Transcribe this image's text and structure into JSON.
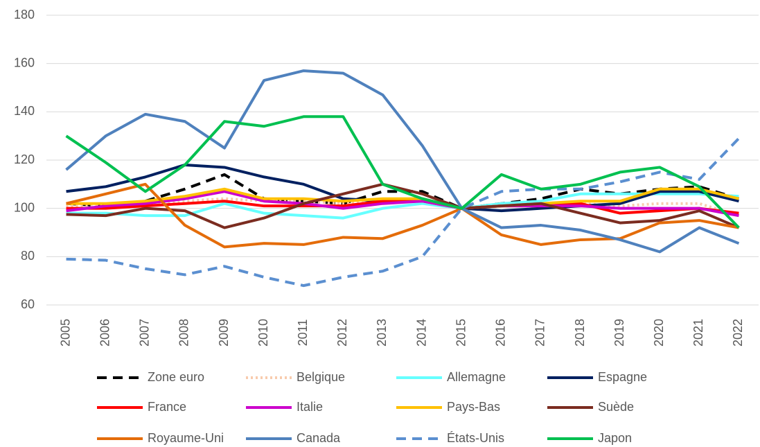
{
  "chart_data": {
    "type": "line",
    "categories": [
      "2005",
      "2006",
      "2007",
      "2008",
      "2009",
      "2010",
      "2011",
      "2012",
      "2013",
      "2014",
      "2015",
      "2016",
      "2017",
      "2018",
      "2019",
      "2020",
      "2021",
      "2022"
    ],
    "ylim": [
      60,
      180
    ],
    "yticks": [
      60,
      80,
      100,
      120,
      140,
      160,
      180
    ],
    "grid": true,
    "series": [
      {
        "name": "Zone euro",
        "color": "#000000",
        "dash": "dashed",
        "values": [
          102,
          101,
          103,
          108,
          114,
          104,
          103,
          102,
          107,
          107,
          100,
          102,
          104,
          108,
          106,
          108,
          109,
          104
        ]
      },
      {
        "name": "Belgique",
        "color": "#f8cbad",
        "dash": "dotted",
        "values": [
          101,
          101,
          102,
          103,
          104,
          103,
          103,
          102,
          103,
          103,
          100,
          101,
          101,
          102,
          101,
          102,
          102,
          97
        ]
      },
      {
        "name": "Allemagne",
        "color": "#66ffff",
        "dash": "solid",
        "values": [
          98,
          98,
          97,
          97,
          102,
          98,
          97,
          96,
          100,
          102,
          100,
          102,
          103,
          106,
          106,
          106,
          106,
          105
        ]
      },
      {
        "name": "Espagne",
        "color": "#002060",
        "dash": "solid",
        "values": [
          107,
          109,
          113,
          118,
          117,
          113,
          110,
          104,
          103,
          104,
          100,
          99,
          100,
          101,
          102,
          107,
          107,
          103
        ]
      },
      {
        "name": "France",
        "color": "#ff0000",
        "dash": "solid",
        "values": [
          100,
          100,
          101,
          102,
          103,
          101,
          101,
          101,
          103,
          103,
          100,
          101,
          101,
          102,
          98,
          99,
          100,
          98
        ]
      },
      {
        "name": "Italie",
        "color": "#cc00cc",
        "dash": "solid",
        "values": [
          99,
          101,
          102,
          104,
          107,
          103,
          102,
          100,
          102,
          103,
          100,
          101,
          101,
          101,
          100,
          100,
          100,
          97
        ]
      },
      {
        "name": "Pays-Bas",
        "color": "#ffc000",
        "dash": "solid",
        "values": [
          102,
          102,
          103,
          105,
          108,
          104,
          104,
          103,
          104,
          104,
          100,
          101,
          102,
          103,
          103,
          108,
          108,
          104
        ]
      },
      {
        "name": "Suède",
        "color": "#7b2c20",
        "dash": "solid",
        "values": [
          97.5,
          97,
          100,
          99,
          92,
          96,
          102,
          106,
          110,
          106,
          100,
          101,
          102,
          98,
          94,
          95,
          99,
          92
        ]
      },
      {
        "name": "Royaume-Uni",
        "color": "#e46c0a",
        "dash": "solid",
        "values": [
          102,
          106,
          110,
          93,
          84,
          85.5,
          85,
          88,
          87.5,
          93,
          100,
          89,
          85,
          87,
          87.5,
          94,
          95,
          92
        ]
      },
      {
        "name": "Canada",
        "color": "#4f81bd",
        "dash": "solid",
        "values": [
          116,
          130,
          139,
          136,
          125,
          153,
          157,
          156,
          147,
          126,
          100,
          92,
          93,
          91,
          87,
          82,
          92,
          85.5
        ]
      },
      {
        "name": "États-Unis",
        "color": "#5b8fd0",
        "dash": "dashed",
        "values": [
          79,
          78.5,
          75,
          72.5,
          76,
          71.5,
          68,
          71.5,
          74,
          80,
          100,
          107,
          108,
          108,
          111,
          115,
          112,
          129
        ]
      },
      {
        "name": "Japon",
        "color": "#00c050",
        "dash": "solid",
        "values": [
          130,
          119,
          107,
          118,
          136,
          134,
          138,
          138,
          110,
          104,
          100,
          114,
          108,
          110,
          115,
          117,
          109,
          92
        ]
      }
    ]
  }
}
